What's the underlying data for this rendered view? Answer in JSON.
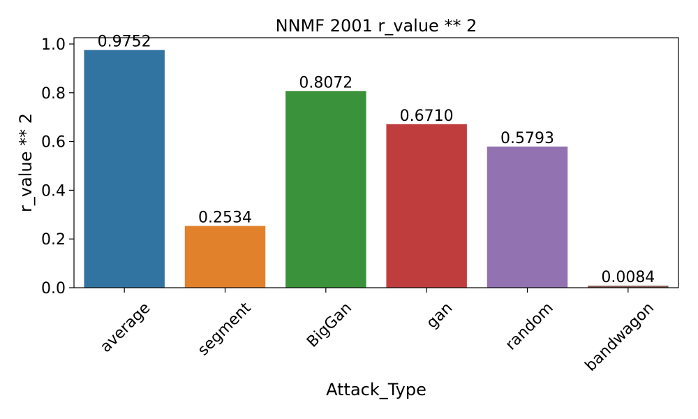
{
  "chart_data": {
    "type": "bar",
    "title": "NNMF  2001  r_value ** 2",
    "xlabel": "Attack_Type",
    "ylabel": "r_value ** 2",
    "categories": [
      "average",
      "segment",
      "BigGan",
      "gan",
      "random",
      "bandwagon"
    ],
    "values": [
      0.9752,
      0.2534,
      0.8072,
      0.671,
      0.5793,
      0.0084
    ],
    "data_labels": [
      "0.9752",
      "0.2534",
      "0.8072",
      "0.6710",
      "0.5793",
      "0.0084"
    ],
    "colors": [
      "#3274a1",
      "#e1812c",
      "#3a923a",
      "#c03d3e",
      "#9372b2",
      "#845b53"
    ],
    "ylim": [
      0,
      1.0
    ],
    "yticks": [
      "0.0",
      "0.2",
      "0.4",
      "0.6",
      "0.8",
      "1.0"
    ],
    "grid": false,
    "legend": "none"
  }
}
